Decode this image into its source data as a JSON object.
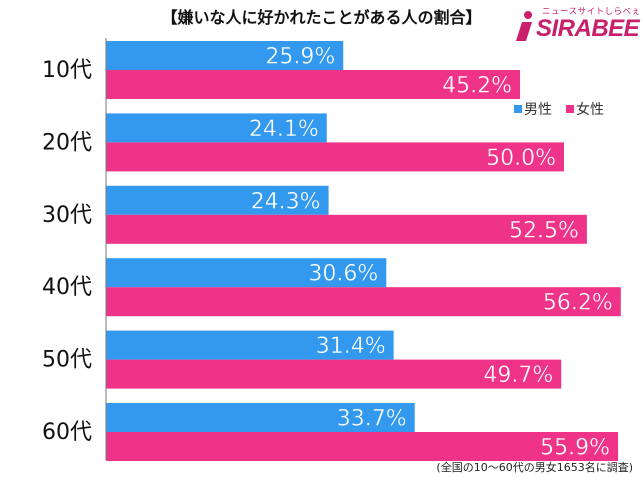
{
  "title": "【嫌いな人に好かれたことがある人の割合】",
  "logo": {
    "sub_text": "ニュースサイトしらべぇ",
    "main_text": "SIRABEE"
  },
  "footnote": "(全国の10～60代の男女1653名に調査)",
  "colors": {
    "male": "#3399ee",
    "female": "#ee3388"
  },
  "chart_data": {
    "type": "bar",
    "orientation": "horizontal",
    "categories": [
      "10代",
      "20代",
      "30代",
      "40代",
      "50代",
      "60代"
    ],
    "series": [
      {
        "name": "男性",
        "values": [
          25.9,
          24.1,
          24.3,
          30.6,
          31.4,
          33.7
        ],
        "labels": [
          "25.9%",
          "24.1%",
          "24.3%",
          "30.6%",
          "31.4%",
          "33.7%"
        ]
      },
      {
        "name": "女性",
        "values": [
          45.2,
          50.0,
          52.5,
          56.2,
          49.7,
          55.9
        ],
        "labels": [
          "45.2%",
          "50.0%",
          "52.5%",
          "56.2%",
          "49.7%",
          "55.9%"
        ]
      }
    ],
    "xlim": [
      0,
      60
    ],
    "legend": "top-right",
    "grid": false
  }
}
